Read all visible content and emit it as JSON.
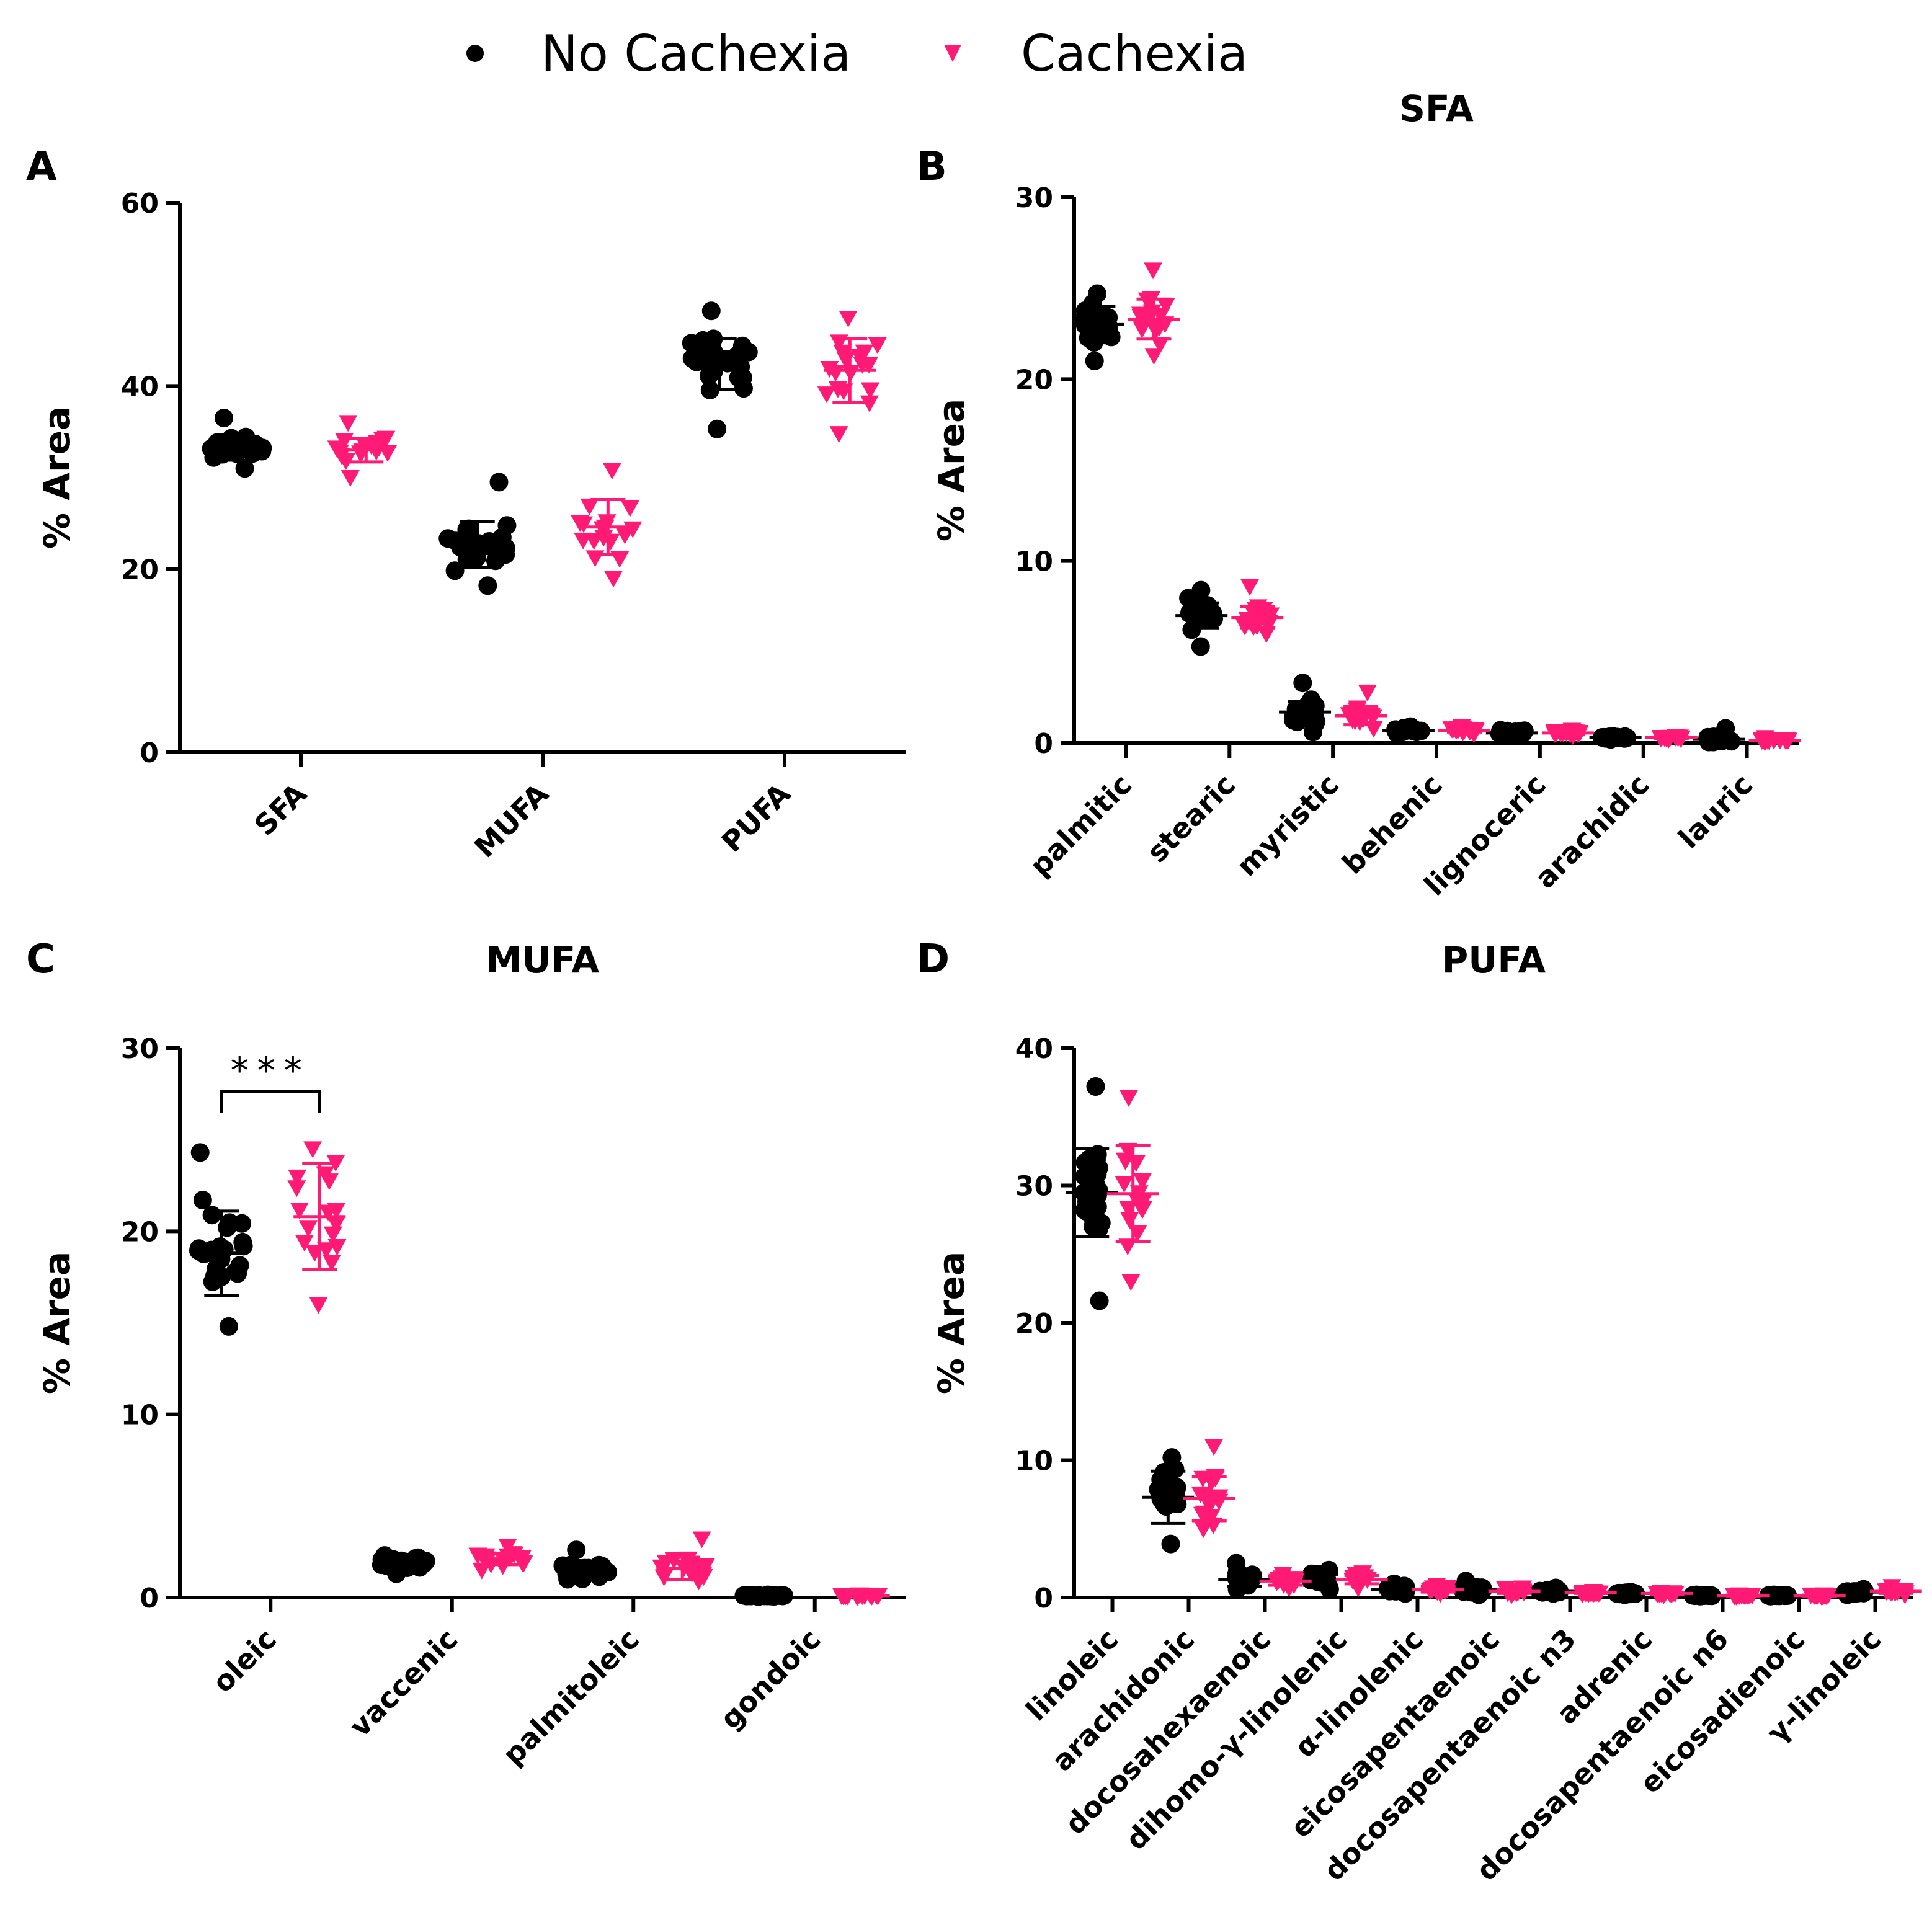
{
  "legend": {
    "items": [
      {
        "label": "No Cachexia",
        "color": "#000000",
        "marker": "circle"
      },
      {
        "label": "Cachexia",
        "color": "#ff1a75",
        "marker": "triangle-down"
      }
    ]
  },
  "chart_data": [
    {
      "id": "A",
      "type": "scatter",
      "title": "",
      "ylabel": "% Area",
      "ylim": [
        0,
        60
      ],
      "yticks": [
        0,
        20,
        40,
        60
      ],
      "categories": [
        "SFA",
        "MUFA",
        "PUFA"
      ],
      "series": [
        {
          "name": "No Cachexia",
          "values": [
            {
              "mean": 33.3,
              "sd": 1.4,
              "min": 31.0,
              "max": 36.5,
              "n": 26
            },
            {
              "mean": 22.7,
              "sd": 2.5,
              "min": 18.2,
              "max": 29.5,
              "n": 26
            },
            {
              "mean": 42.4,
              "sd": 2.8,
              "min": 35.3,
              "max": 48.2,
              "n": 26
            }
          ]
        },
        {
          "name": "Cachexia",
          "values": [
            {
              "mean": 33.0,
              "sd": 1.3,
              "min": 30.0,
              "max": 36.0,
              "n": 18
            },
            {
              "mean": 24.6,
              "sd": 3.0,
              "min": 19.0,
              "max": 30.8,
              "n": 18
            },
            {
              "mean": 41.7,
              "sd": 3.5,
              "min": 34.8,
              "max": 47.4,
              "n": 18
            }
          ]
        }
      ]
    },
    {
      "id": "B",
      "type": "scatter",
      "title": "SFA",
      "ylabel": "% Area",
      "ylim": [
        0,
        30
      ],
      "yticks": [
        0,
        10,
        20,
        30
      ],
      "categories": [
        "palmitic",
        "stearic",
        "myristic",
        "behenic",
        "lignoceric",
        "arachidic",
        "lauric"
      ],
      "series": [
        {
          "name": "No Cachexia",
          "values": [
            {
              "mean": 23.0,
              "sd": 1.0,
              "min": 21.0,
              "max": 24.7,
              "n": 26
            },
            {
              "mean": 7.0,
              "sd": 0.7,
              "min": 5.3,
              "max": 8.4,
              "n": 26
            },
            {
              "mean": 1.7,
              "sd": 0.6,
              "min": 0.6,
              "max": 3.3,
              "n": 26
            },
            {
              "mean": 0.7,
              "sd": 0.1,
              "min": 0.5,
              "max": 0.9,
              "n": 26
            },
            {
              "mean": 0.55,
              "sd": 0.1,
              "min": 0.4,
              "max": 0.7,
              "n": 26
            },
            {
              "mean": 0.3,
              "sd": 0.05,
              "min": 0.2,
              "max": 0.35,
              "n": 26
            },
            {
              "mean": 0.2,
              "sd": 0.15,
              "min": 0.05,
              "max": 0.8,
              "n": 26
            }
          ]
        },
        {
          "name": "Cachexia",
          "values": [
            {
              "mean": 23.3,
              "sd": 1.1,
              "min": 21.3,
              "max": 26.0,
              "n": 18
            },
            {
              "mean": 6.9,
              "sd": 0.6,
              "min": 6.0,
              "max": 8.6,
              "n": 18
            },
            {
              "mean": 1.5,
              "sd": 0.5,
              "min": 0.8,
              "max": 2.8,
              "n": 18
            },
            {
              "mean": 0.7,
              "sd": 0.1,
              "min": 0.5,
              "max": 0.9,
              "n": 18
            },
            {
              "mean": 0.55,
              "sd": 0.1,
              "min": 0.4,
              "max": 0.7,
              "n": 18
            },
            {
              "mean": 0.3,
              "sd": 0.05,
              "min": 0.2,
              "max": 0.35,
              "n": 18
            },
            {
              "mean": 0.15,
              "sd": 0.05,
              "min": 0.05,
              "max": 0.3,
              "n": 18
            }
          ]
        }
      ]
    },
    {
      "id": "C",
      "type": "scatter",
      "title": "MUFA",
      "ylabel": "% Area",
      "ylim": [
        0,
        30
      ],
      "yticks": [
        0,
        10,
        20,
        30
      ],
      "categories": [
        "oleic",
        "vaccenic",
        "palmitoleic",
        "gondoic"
      ],
      "annotation": {
        "text": "***",
        "between": "oleic"
      },
      "series": [
        {
          "name": "No Cachexia",
          "values": [
            {
              "mean": 18.8,
              "sd": 2.3,
              "min": 14.8,
              "max": 24.3,
              "n": 26
            },
            {
              "mean": 1.9,
              "sd": 0.3,
              "min": 1.3,
              "max": 2.3,
              "n": 26
            },
            {
              "mean": 1.5,
              "sd": 0.4,
              "min": 1.0,
              "max": 2.6,
              "n": 26
            },
            {
              "mean": 0.1,
              "sd": 0.03,
              "min": 0.05,
              "max": 0.15,
              "n": 26
            }
          ]
        },
        {
          "name": "Cachexia",
          "values": [
            {
              "mean": 20.8,
              "sd": 2.9,
              "min": 16.0,
              "max": 24.5,
              "n": 18
            },
            {
              "mean": 2.1,
              "sd": 0.3,
              "min": 1.5,
              "max": 2.8,
              "n": 18
            },
            {
              "mean": 1.6,
              "sd": 0.6,
              "min": 0.9,
              "max": 3.2,
              "n": 18
            },
            {
              "mean": 0.1,
              "sd": 0.03,
              "min": 0.05,
              "max": 0.15,
              "n": 18
            }
          ]
        }
      ]
    },
    {
      "id": "D",
      "type": "scatter",
      "title": "PUFA",
      "ylabel": "% Area",
      "ylim": [
        0,
        40
      ],
      "yticks": [
        0,
        10,
        20,
        30,
        40
      ],
      "categories": [
        "linoleic",
        "arachidonic",
        "docosahexaenoic",
        "dihomo-γ-linolenic",
        "α-linolenic",
        "eicosapentaenoic",
        "docosapentaenoic n3",
        "adrenic",
        "docosapentaenoic n6",
        "eicosadienoic",
        "γ-linoleic"
      ],
      "series": [
        {
          "name": "No Cachexia",
          "values": [
            {
              "mean": 29.5,
              "sd": 3.2,
              "min": 21.6,
              "max": 37.2,
              "n": 26
            },
            {
              "mean": 7.3,
              "sd": 1.9,
              "min": 3.9,
              "max": 10.2,
              "n": 26
            },
            {
              "mean": 1.3,
              "sd": 0.5,
              "min": 0.6,
              "max": 2.5,
              "n": 26
            },
            {
              "mean": 1.3,
              "sd": 0.4,
              "min": 0.6,
              "max": 2.0,
              "n": 26
            },
            {
              "mean": 0.6,
              "sd": 0.2,
              "min": 0.3,
              "max": 1.0,
              "n": 26
            },
            {
              "mean": 0.6,
              "sd": 0.25,
              "min": 0.2,
              "max": 1.2,
              "n": 26
            },
            {
              "mean": 0.45,
              "sd": 0.1,
              "min": 0.3,
              "max": 0.7,
              "n": 26
            },
            {
              "mean": 0.3,
              "sd": 0.05,
              "min": 0.2,
              "max": 0.4,
              "n": 26
            },
            {
              "mean": 0.15,
              "sd": 0.03,
              "min": 0.1,
              "max": 0.2,
              "n": 26
            },
            {
              "mean": 0.15,
              "sd": 0.03,
              "min": 0.1,
              "max": 0.2,
              "n": 26
            },
            {
              "mean": 0.4,
              "sd": 0.1,
              "min": 0.2,
              "max": 0.6,
              "n": 26
            }
          ]
        },
        {
          "name": "Cachexia",
          "values": [
            {
              "mean": 29.4,
              "sd": 3.5,
              "min": 23.0,
              "max": 36.4,
              "n": 18
            },
            {
              "mean": 7.2,
              "sd": 1.6,
              "min": 5.0,
              "max": 11.0,
              "n": 18
            },
            {
              "mean": 1.2,
              "sd": 0.3,
              "min": 0.7,
              "max": 1.7,
              "n": 18
            },
            {
              "mean": 1.3,
              "sd": 0.3,
              "min": 0.7,
              "max": 1.8,
              "n": 18
            },
            {
              "mean": 0.6,
              "sd": 0.2,
              "min": 0.3,
              "max": 0.9,
              "n": 18
            },
            {
              "mean": 0.45,
              "sd": 0.15,
              "min": 0.2,
              "max": 0.7,
              "n": 18
            },
            {
              "mean": 0.35,
              "sd": 0.05,
              "min": 0.25,
              "max": 0.45,
              "n": 18
            },
            {
              "mean": 0.3,
              "sd": 0.05,
              "min": 0.2,
              "max": 0.4,
              "n": 18
            },
            {
              "mean": 0.15,
              "sd": 0.03,
              "min": 0.1,
              "max": 0.2,
              "n": 18
            },
            {
              "mean": 0.15,
              "sd": 0.03,
              "min": 0.1,
              "max": 0.2,
              "n": 18
            },
            {
              "mean": 0.45,
              "sd": 0.15,
              "min": 0.2,
              "max": 0.8,
              "n": 18
            }
          ]
        }
      ]
    }
  ]
}
